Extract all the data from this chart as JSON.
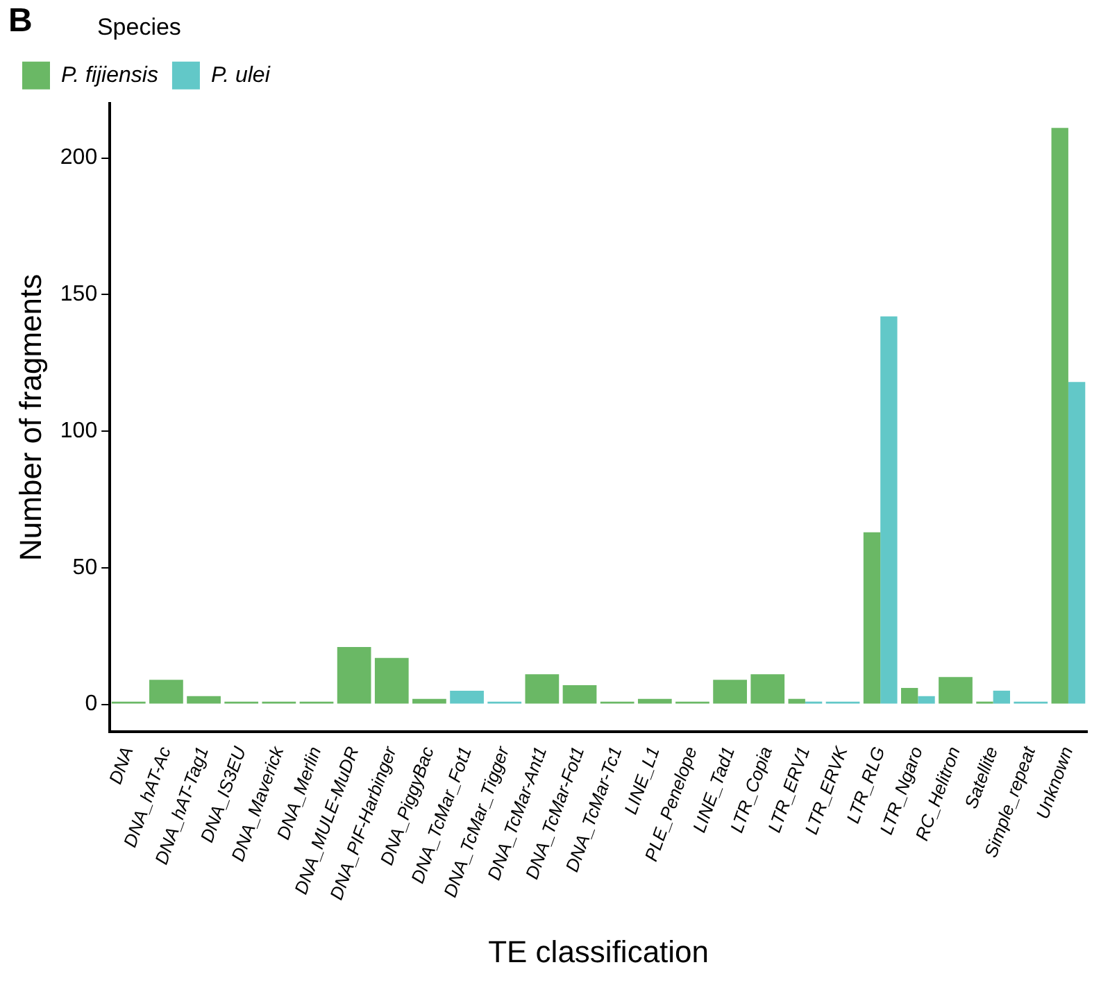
{
  "chart_data": {
    "type": "bar",
    "xlabel": "TE classification",
    "ylabel": "Number of fragments",
    "legend_title": "Species",
    "legend": "top left",
    "grid": false,
    "categories": [
      "DNA",
      "DNA_hAT-Ac",
      "DNA_hAT-Tag1",
      "DNA_IS3EU",
      "DNA_Maverick",
      "DNA_Merlin",
      "DNA_MULE-MuDR",
      "DNA_PIF-Harbinger",
      "DNA_PiggyBac",
      "DNA_TcMar_Fot1",
      "DNA_TcMar_Tigger",
      "DNA_TcMar-Ant1",
      "DNA_TcMar-Fot1",
      "DNA_TcMar-Tc1",
      "LINE_L1",
      "PLE_Penelope",
      "LINE_Tad1",
      "LTR_Copia",
      "LTR_ERV1",
      "LTR_ERVK",
      "LTR_RLG",
      "LTR_Ngaro",
      "RC_Helitron",
      "Satellite",
      "Simple_repeat",
      "Unknown"
    ],
    "series": [
      {
        "name": "P. fijiensis",
        "color": "#6ab865",
        "values": [
          1,
          9,
          3,
          1,
          1,
          1,
          21,
          17,
          2,
          null,
          null,
          11,
          7,
          1,
          2,
          1,
          9,
          11,
          2,
          null,
          63,
          6,
          10,
          1,
          null,
          211
        ]
      },
      {
        "name": "P. ulei",
        "color": "#62c8c8",
        "values": [
          null,
          null,
          null,
          null,
          null,
          null,
          null,
          null,
          null,
          5,
          1,
          null,
          null,
          null,
          null,
          null,
          null,
          null,
          1,
          1,
          142,
          3,
          null,
          5,
          1,
          118
        ]
      }
    ],
    "ylim": [
      -10,
      220
    ],
    "yticks": [
      0,
      50,
      100,
      150,
      200
    ],
    "annotations": [
      "B"
    ]
  }
}
